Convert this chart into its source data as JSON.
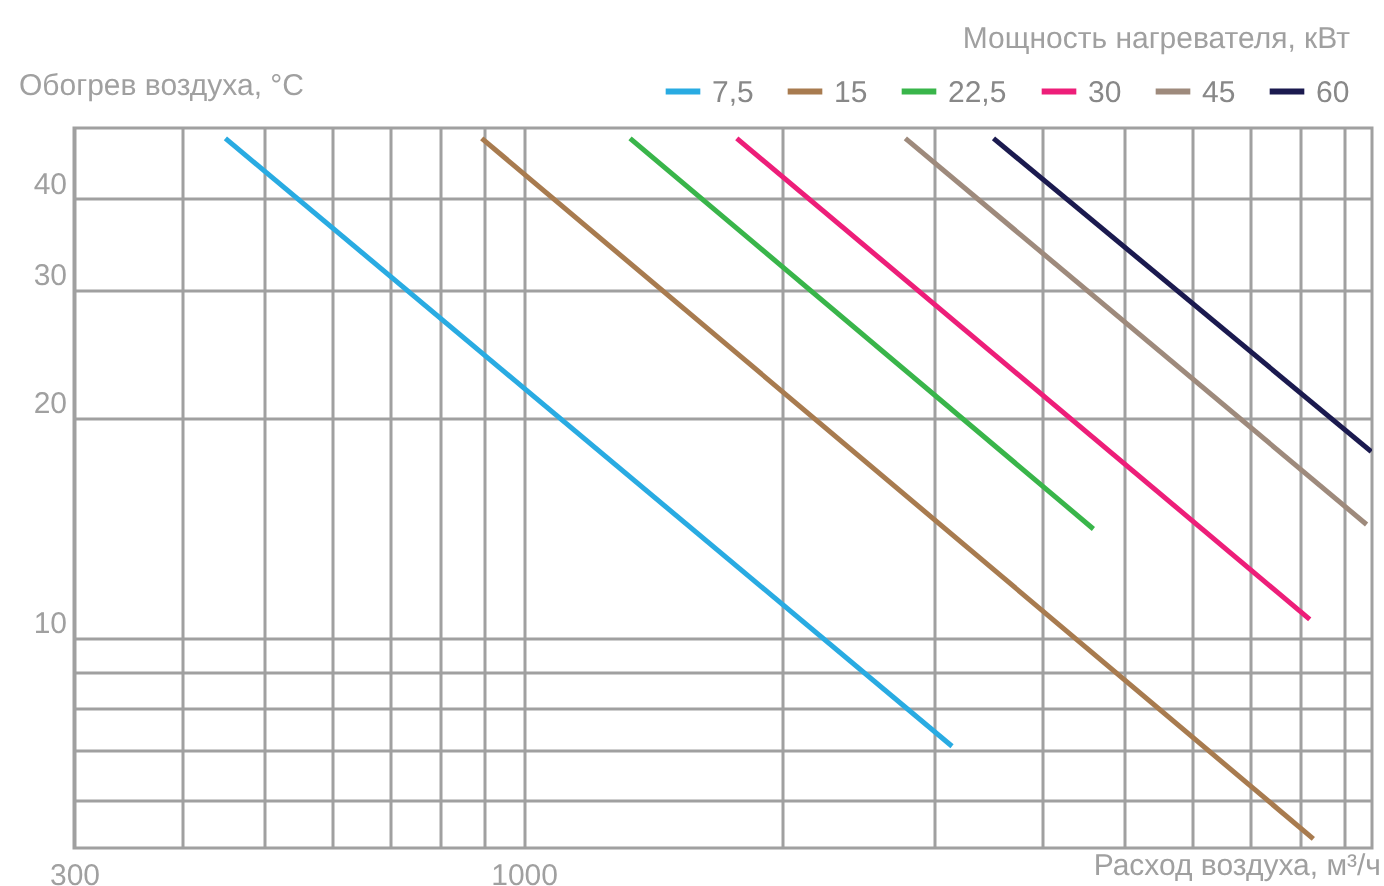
{
  "chart_data": {
    "type": "line",
    "xlabel": "Расход воздуха, м³/ч",
    "ylabel": "Обогрев воздуха, °С",
    "legend_title": "Мощность нагревателя, кВт",
    "legend": "top right",
    "grid": true,
    "log": "xy",
    "marker": "none",
    "line_style": "solid",
    "xlim": [
      300,
      9700
    ],
    "ylim": [
      5.15,
      50
    ],
    "xticks": [
      300,
      {
        "value": 400,
        "label": null
      },
      {
        "value": 500,
        "label": null
      },
      {
        "value": 600,
        "label": null
      },
      {
        "value": 700,
        "label": null
      },
      {
        "value": 800,
        "label": null
      },
      {
        "value": 900,
        "label": null
      },
      1000,
      {
        "value": 2000,
        "label": null
      },
      {
        "value": 3000,
        "label": null
      },
      {
        "value": 4000,
        "label": null
      },
      {
        "value": 5000,
        "label": null
      },
      {
        "value": 6000,
        "label": null
      },
      {
        "value": 7000,
        "label": null
      },
      {
        "value": 8000,
        "label": null
      },
      {
        "value": 9000,
        "label": null
      }
    ],
    "yticks": [
      {
        "value": 6,
        "label": null
      },
      {
        "value": 7,
        "label": null
      },
      {
        "value": 8,
        "label": null
      },
      {
        "value": 9,
        "label": null
      },
      10,
      20,
      30,
      40
    ],
    "series": [
      {
        "name": "7,5",
        "color": "#29abe2",
        "x": [
          450,
          3150
        ],
        "values": [
          48.4,
          7.1
        ]
      },
      {
        "name": "15",
        "color": "#a87b4f",
        "x": [
          894,
          8290
        ],
        "values": [
          48.4,
          5.3
        ]
      },
      {
        "name": "22,5",
        "color": "#39b54a",
        "x": [
          1330,
          4600
        ],
        "values": [
          48.4,
          14.1
        ]
      },
      {
        "name": "30",
        "color": "#ed1e79",
        "x": [
          1770,
          8210
        ],
        "values": [
          48.4,
          10.6
        ]
      },
      {
        "name": "45",
        "color": "#9e8a7c",
        "x": [
          2780,
          9560
        ],
        "values": [
          48.4,
          14.3
        ]
      },
      {
        "name": "60",
        "color": "#1b1a4f",
        "x": [
          3520,
          9680
        ],
        "values": [
          48.4,
          18.0
        ]
      }
    ]
  }
}
